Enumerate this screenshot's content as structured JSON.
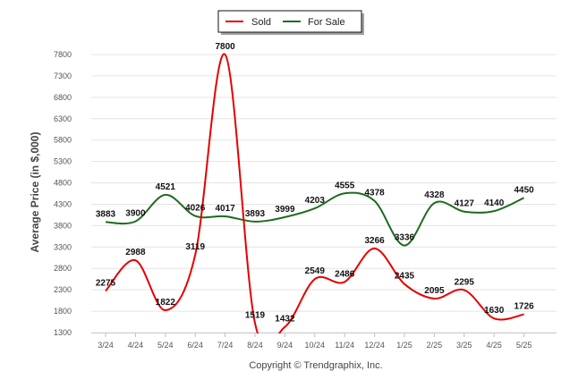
{
  "chart_data": {
    "type": "line",
    "x": [
      "3/24",
      "4/24",
      "5/24",
      "6/24",
      "7/24",
      "8/24",
      "9/24",
      "10/24",
      "11/24",
      "12/24",
      "1/25",
      "2/25",
      "3/25",
      "4/25",
      "5/25"
    ],
    "ylabel": "Average Price (in $,000)",
    "ylim": [
      1300,
      8000
    ],
    "yticks": [
      1300,
      1800,
      2300,
      2800,
      3300,
      3800,
      4300,
      4800,
      5300,
      5800,
      6300,
      6800,
      7300,
      7800
    ],
    "grid": true,
    "legend_position": "top-center",
    "series": [
      {
        "name": "Sold",
        "color": "#e60000",
        "values": [
          2275,
          2988,
          1822,
          3119,
          7800,
          1519,
          1432,
          2549,
          2486,
          3266,
          2435,
          2095,
          2295,
          1630,
          1726
        ],
        "labels": [
          "2275",
          "2988",
          "1822",
          "3119",
          "7800",
          "1519",
          "1432",
          "2549",
          "2486",
          "3266",
          "2435",
          "2095",
          "2295",
          "1630",
          "1726"
        ]
      },
      {
        "name": "For Sale",
        "color": "#1e6b1e",
        "values": [
          3883,
          3900,
          4521,
          4026,
          4017,
          3893,
          3999,
          4203,
          4555,
          4378,
          3336,
          4328,
          4127,
          4140,
          4450
        ],
        "labels": [
          "3883",
          "3900",
          "4521",
          "4026",
          "4017",
          "3893",
          "3999",
          "4203",
          "4555",
          "4378",
          "3336",
          "4328",
          "4127",
          "4140",
          "4450"
        ]
      }
    ]
  },
  "footer": {
    "copyright": "Copyright © Trendgraphix, Inc."
  }
}
